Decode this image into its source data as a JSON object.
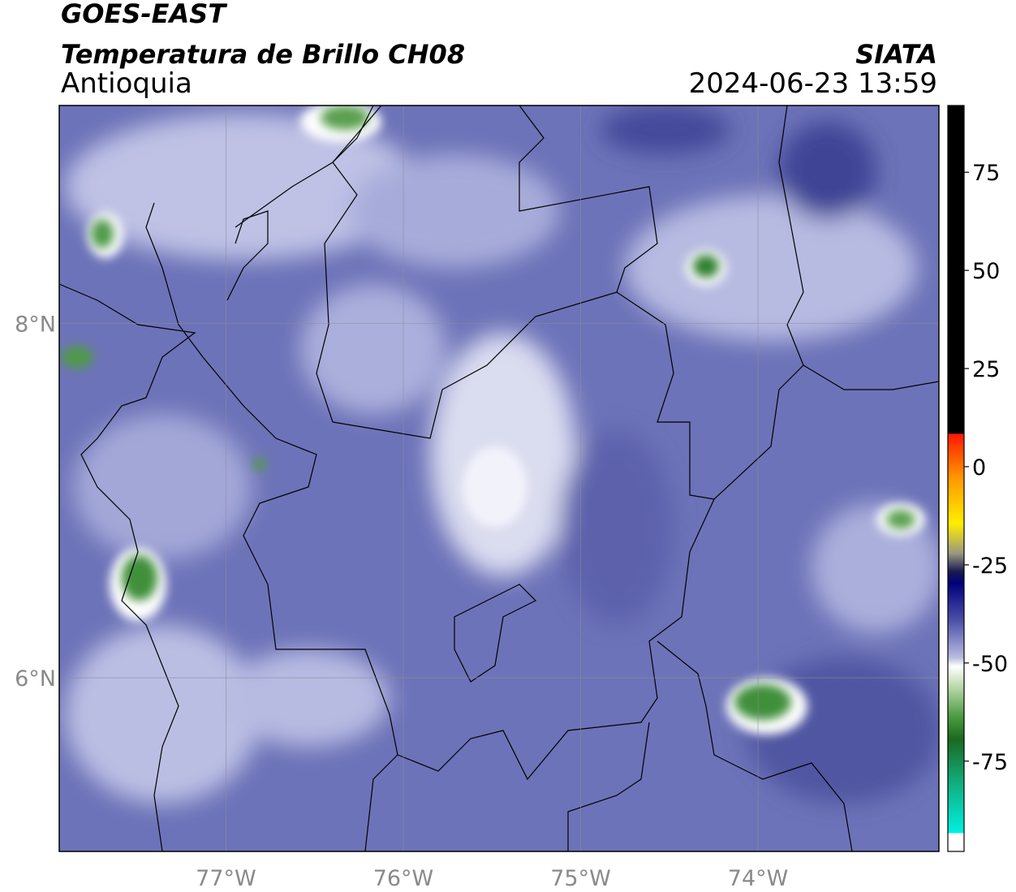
{
  "chart_data": {
    "type": "map",
    "title": "GOES-EAST",
    "subtitle": "Temperatura de Brillo CH08",
    "region": "Antioquia",
    "source": "SIATA",
    "timestamp": "2024-06-23 13:59",
    "xlim": [
      -77.94,
      -72.98
    ],
    "ylim": [
      5.02,
      9.23
    ],
    "xticks": [
      {
        "value": -77,
        "label": "77°W"
      },
      {
        "value": -76,
        "label": "76°W"
      },
      {
        "value": -75,
        "label": "75°W"
      },
      {
        "value": -74,
        "label": "74°W"
      }
    ],
    "yticks": [
      {
        "value": 6,
        "label": "6°N"
      },
      {
        "value": 8,
        "label": "8°N"
      }
    ],
    "grid": true,
    "colorbar": {
      "lim": [
        -98,
        92
      ],
      "ticks": [
        -75,
        -50,
        -25,
        0,
        25,
        50,
        75
      ]
    }
  }
}
